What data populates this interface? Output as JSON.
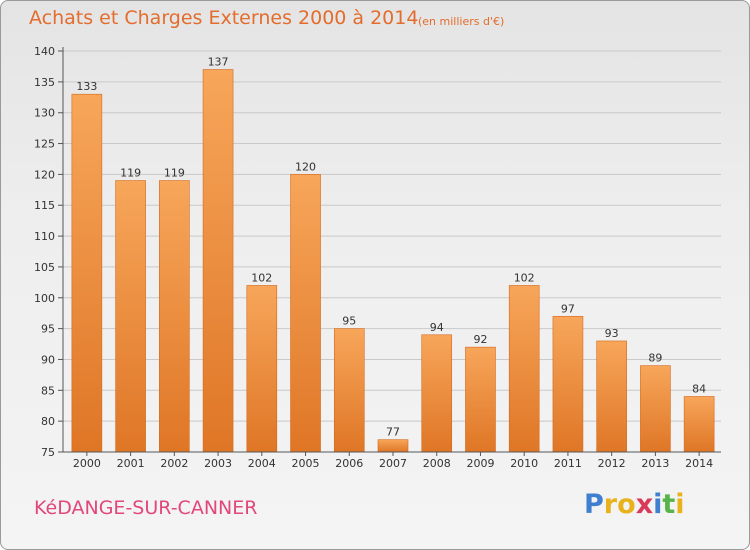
{
  "header": {
    "title": "Achats et Charges Externes 2000 à 2014",
    "subtitle": "(en milliers d'€)"
  },
  "footer": {
    "commune": "KéDANGE-SUR-CANNER",
    "logo": [
      "P",
      "r",
      "o",
      "x",
      "i",
      "t",
      "i"
    ],
    "logo_colors": [
      "#3f7fd0",
      "#e8b21c",
      "#e8b21c",
      "#d93a5a",
      "#3f7fd0",
      "#58b44a",
      "#e8b21c"
    ]
  },
  "colors": {
    "bar_top": "#f7a65a",
    "bar_bottom": "#df7626",
    "bar_edge": "#d4691f",
    "accent": "#e46c2c"
  },
  "chart_data": {
    "type": "bar",
    "title": "Achats et Charges Externes 2000 à 2014",
    "subtitle": "(en milliers d'€)",
    "xlabel": "",
    "ylabel": "",
    "categories": [
      "2000",
      "2001",
      "2002",
      "2003",
      "2004",
      "2005",
      "2006",
      "2007",
      "2008",
      "2009",
      "2010",
      "2011",
      "2012",
      "2013",
      "2014"
    ],
    "values": [
      133,
      119,
      119,
      137,
      102,
      120,
      95,
      77,
      94,
      92,
      102,
      97,
      93,
      89,
      84
    ],
    "ylim": [
      75,
      140
    ],
    "yticks": [
      75,
      80,
      85,
      90,
      95,
      100,
      105,
      110,
      115,
      120,
      125,
      130,
      135,
      140
    ],
    "grid": true
  }
}
